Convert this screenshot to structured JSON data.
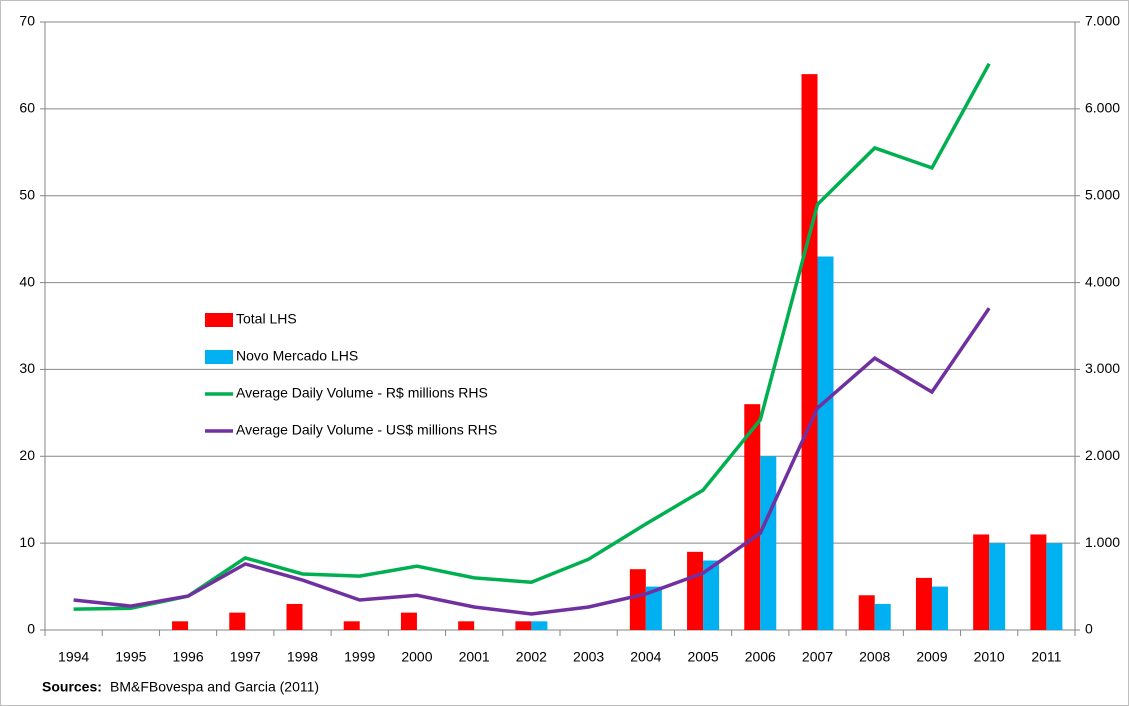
{
  "chart_data": {
    "type": "bar",
    "categories": [
      "1994",
      "1995",
      "1996",
      "1997",
      "1998",
      "1999",
      "2000",
      "2001",
      "2002",
      "2003",
      "2004",
      "2005",
      "2006",
      "2007",
      "2008",
      "2009",
      "2010",
      "2011"
    ],
    "series": [
      {
        "name": "Total LHS",
        "color": "#ff0000",
        "values": [
          0,
          0,
          1,
          2,
          3,
          1,
          2,
          1,
          1,
          0,
          7,
          9,
          26,
          64,
          4,
          6,
          11,
          11
        ]
      },
      {
        "name": "Novo Mercado LHS",
        "color": "#00b0f0",
        "values": [
          0,
          0,
          0,
          0,
          0,
          0,
          0,
          0,
          1,
          0,
          5,
          8,
          20,
          43,
          3,
          5,
          10,
          10
        ]
      },
      {
        "name": "Average Daily Volume - R$ millions RHS",
        "color": "#00b050",
        "type": "line",
        "axis": "y2",
        "values": [
          240,
          250,
          390,
          830,
          645,
          620,
          735,
          600,
          550,
          815,
          1220,
          1610,
          2420,
          4900,
          5550,
          5320,
          6520,
          null
        ]
      },
      {
        "name": "Average Daily Volume - US$ millions RHS",
        "color": "#7030a0",
        "type": "line",
        "axis": "y2",
        "values": [
          345,
          275,
          390,
          760,
          575,
          345,
          400,
          265,
          185,
          265,
          415,
          655,
          1115,
          2555,
          3130,
          2740,
          3705,
          null
        ]
      }
    ],
    "ylim": [
      0,
      70
    ],
    "yticks": [
      0,
      10,
      20,
      30,
      40,
      50,
      60,
      70
    ],
    "y2lim": [
      0,
      7000
    ],
    "y2ticks": [
      0,
      {
        "value": 1000,
        "label": "1.000"
      },
      {
        "value": 2000,
        "label": "2.000"
      },
      {
        "value": 3000,
        "label": "3.000"
      },
      {
        "value": 4000,
        "label": "4.000"
      },
      {
        "value": 5000,
        "label": "5.000"
      },
      {
        "value": 6000,
        "label": "6.000"
      },
      {
        "value": 7000,
        "label": "7.000"
      }
    ],
    "grid": true,
    "legend": "center-left",
    "source_label": "Sources:",
    "source": "BM&FBovespa and Garcia (2011)"
  }
}
